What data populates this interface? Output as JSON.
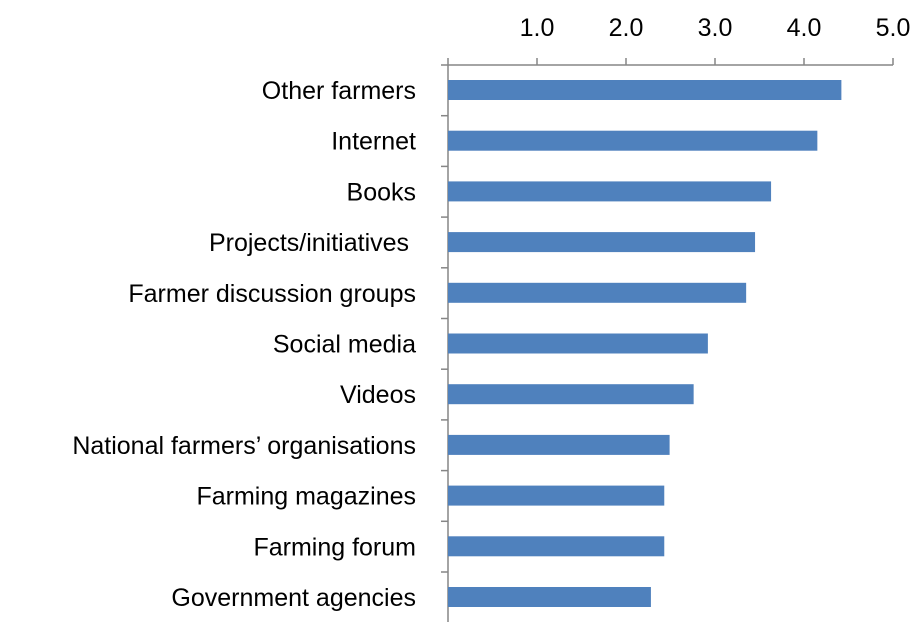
{
  "chart_data": {
    "type": "bar",
    "orientation": "horizontal",
    "categories": [
      "Other farmers",
      "Internet",
      "Books",
      "Projects/initiatives ",
      "Farmer discussion groups",
      "Social media",
      "Videos",
      "National farmers’ organisations",
      "Farming magazines",
      "Farming forum",
      "Government agencies"
    ],
    "values": [
      4.42,
      4.15,
      3.63,
      3.45,
      3.35,
      2.92,
      2.76,
      2.49,
      2.43,
      2.43,
      2.28
    ],
    "title": "",
    "xlabel": "",
    "ylabel": "",
    "xlim": [
      0,
      5
    ],
    "xticks": [
      "1.0",
      "2.0",
      "3.0",
      "4.0",
      "5.0"
    ],
    "x_axis_position": "top",
    "grid": false,
    "legend": "none",
    "bar_color": "#4f81bd",
    "axis_color": "#868686"
  }
}
